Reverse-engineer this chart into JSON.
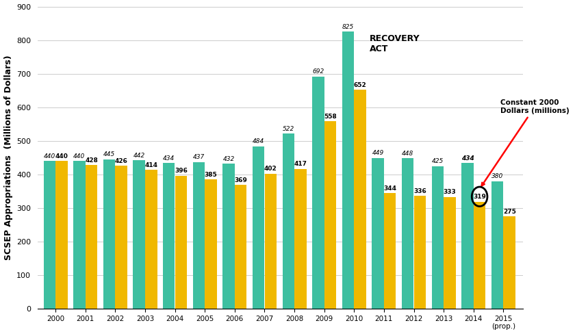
{
  "years": [
    "2000",
    "2001",
    "2002",
    "2003",
    "2004",
    "2005",
    "2006",
    "2007",
    "2008",
    "2009",
    "2010",
    "2011",
    "2012",
    "2013",
    "2014",
    "2015\n(prop.)"
  ],
  "green_values": [
    440,
    440,
    445,
    442,
    434,
    437,
    432,
    484,
    522,
    692,
    825,
    449,
    448,
    425,
    434,
    380
  ],
  "yellow_values": [
    440,
    428,
    426,
    414,
    396,
    385,
    369,
    402,
    417,
    558,
    652,
    344,
    336,
    333,
    319,
    275
  ],
  "green_color": "#3dbfa0",
  "yellow_color": "#f0b800",
  "ylabel": "SCSEP Appropriations  (Millions of Dollars)",
  "ylim": [
    0,
    900
  ],
  "yticks": [
    0,
    100,
    200,
    300,
    400,
    500,
    600,
    700,
    800,
    900
  ],
  "recovery_act_label": "RECOVERY\nACT",
  "recovery_act_idx": 10,
  "constant_label": "Constant 2000\nDollars (millions)",
  "arrow_target_idx": 14,
  "circled_idx": 14,
  "bold_green_idx": 14,
  "figsize": [
    8.4,
    4.88
  ],
  "dpi": 100
}
